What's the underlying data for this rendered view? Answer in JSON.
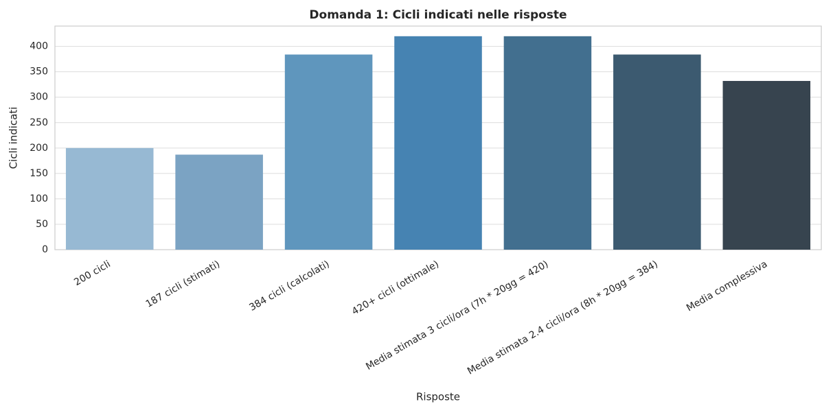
{
  "chart_data": {
    "type": "bar",
    "title": "Domanda 1: Cicli indicati nelle risposte",
    "x_label": "Risposte",
    "y_label": "Cicli indicati",
    "categories": [
      "200 cicli",
      "187 cicli (stimati)",
      "384 cicli (calcolati)",
      "420+ cicli (ottimale)",
      "Media stimata 3 cicli/ora (7h * 20gg = 420)",
      "Media stimata 2.4 cicli/ora (8h * 20gg = 384)",
      "Media complessiva"
    ],
    "values": [
      200,
      187,
      384,
      420,
      420,
      384,
      332
    ],
    "colors": [
      "#97b9d3",
      "#7ba3c3",
      "#5f96bd",
      "#4683b2",
      "#426f8f",
      "#3c5a70",
      "#37444f"
    ],
    "ylim": [
      0,
      440
    ],
    "yticks": [
      0,
      50,
      100,
      150,
      200,
      250,
      300,
      350,
      400
    ],
    "grid": true
  }
}
